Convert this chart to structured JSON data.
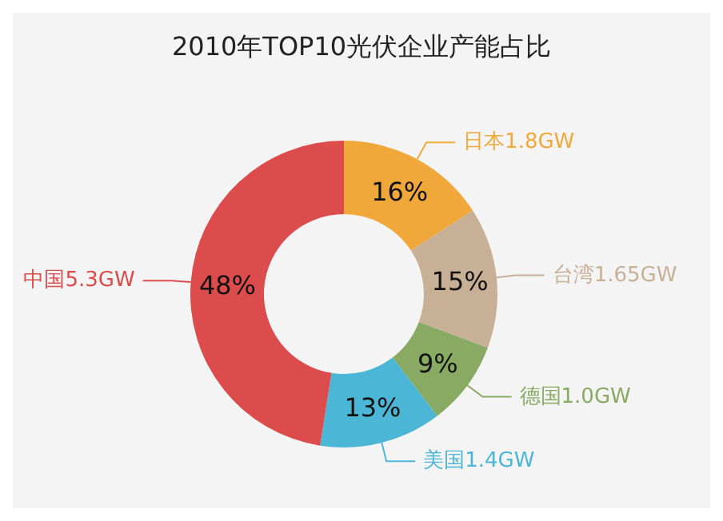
{
  "chart_data": {
    "type": "donut",
    "title": "2010年TOP10光伏企业产能占比",
    "categories": [
      "日本1.8GW",
      "台湾1.65GW",
      "德国1.0GW",
      "美国1.4GW",
      "中国5.3GW"
    ],
    "values": [
      16,
      15,
      9,
      13,
      48
    ],
    "colors": [
      "#f0a83a",
      "#c8b096",
      "#88aa62",
      "#4cb6d6",
      "#dc4c4c"
    ],
    "value_labels": [
      "16%",
      "15%",
      "9%",
      "13%",
      "48%"
    ],
    "legend": false
  }
}
